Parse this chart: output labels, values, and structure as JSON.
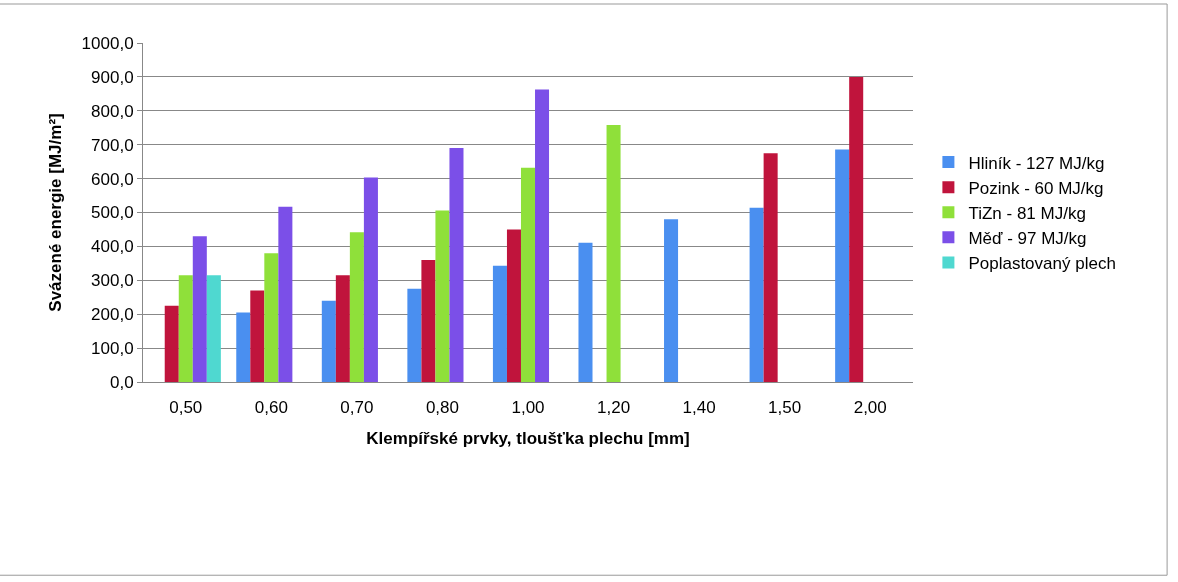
{
  "chart_data": {
    "type": "bar",
    "xlabel": "Klempířské prvky, tloušťka plechu [mm]",
    "ylabel": "Svázené energie [MJ/m²]",
    "categories": [
      "0,50",
      "0,60",
      "0,70",
      "0,80",
      "1,00",
      "1,20",
      "1,40",
      "1,50",
      "2,00"
    ],
    "series": [
      {
        "name": "Hliník - 127 MJ/kg",
        "color": "#4a8ff0",
        "values": [
          null,
          205,
          240,
          275,
          343,
          411,
          480,
          514,
          686
        ]
      },
      {
        "name": "Pozink - 60 MJ/kg",
        "color": "#c0143c",
        "values": [
          225,
          270,
          315,
          360,
          450,
          null,
          null,
          675,
          900
        ]
      },
      {
        "name": "TiZn - 81 MJ/kg",
        "color": "#8fe03a",
        "values": [
          315,
          380,
          442,
          506,
          632,
          758,
          null,
          null,
          null
        ]
      },
      {
        "name": "Měď - 97 MJ/kg",
        "color": "#7b4fe8",
        "values": [
          430,
          517,
          603,
          690,
          863,
          null,
          null,
          null,
          null
        ]
      },
      {
        "name": "Poplastovaný plech",
        "color": "#4fd8d0",
        "values": [
          315,
          null,
          null,
          null,
          null,
          null,
          null,
          null,
          null
        ]
      }
    ],
    "ylim": [
      0,
      1000
    ],
    "yticks": [
      {
        "value": 0,
        "label": "0,0"
      },
      {
        "value": 100,
        "label": "100,0"
      },
      {
        "value": 200,
        "label": "200,0"
      },
      {
        "value": 300,
        "label": "300,0"
      },
      {
        "value": 400,
        "label": "400,0"
      },
      {
        "value": 500,
        "label": "500,0"
      },
      {
        "value": 600,
        "label": "600,0"
      },
      {
        "value": 700,
        "label": "700,0"
      },
      {
        "value": 800,
        "label": "800,0"
      },
      {
        "value": 900,
        "label": "900,0"
      },
      {
        "value": 1000,
        "label": "1000,0"
      }
    ],
    "grid": "y",
    "legend": "right"
  }
}
